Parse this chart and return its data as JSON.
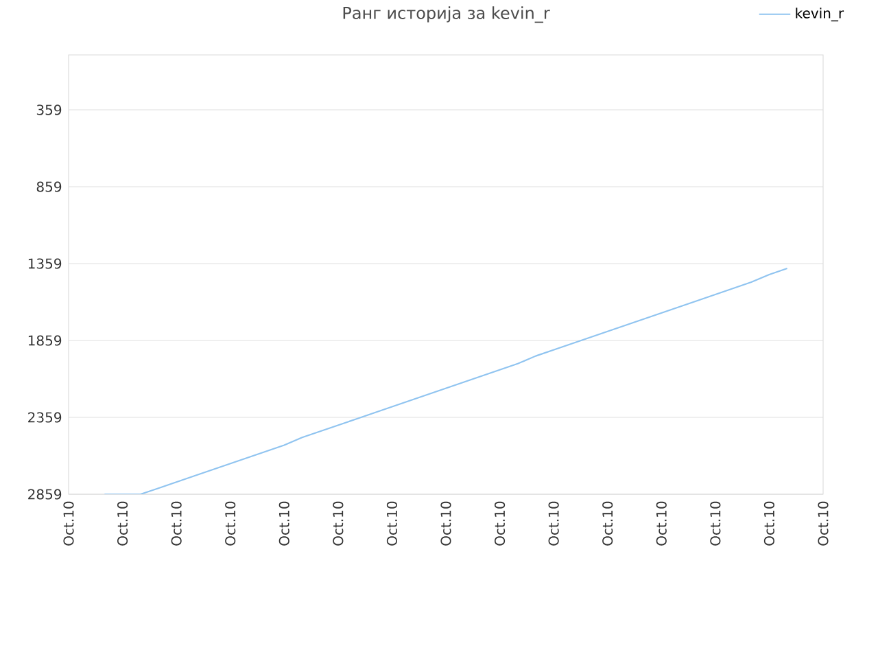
{
  "chart_data": {
    "type": "line",
    "title": "Ранг историја за kevin_r",
    "categories": [
      "Oct.10",
      null,
      null,
      "Oct.10",
      null,
      null,
      "Oct.10",
      null,
      null,
      "Oct.10",
      null,
      null,
      "Oct.10",
      null,
      null,
      "Oct.10",
      null,
      null,
      "Oct.10",
      null,
      null,
      "Oct.10",
      null,
      null,
      "Oct.10",
      null,
      null,
      "Oct.10",
      null,
      null,
      "Oct.10",
      null,
      null,
      "Oct.10",
      null,
      null,
      "Oct.10",
      null,
      null,
      "Oct.10",
      null,
      null,
      "Oct.10"
    ],
    "series": [
      {
        "name": "kevin_r",
        "color": "#90c4f0",
        "values": [
          null,
          null,
          2859,
          2859,
          2859,
          2820,
          2780,
          2740,
          2700,
          2660,
          2620,
          2580,
          2540,
          2490,
          2450,
          2410,
          2370,
          2330,
          2290,
          2250,
          2210,
          2170,
          2130,
          2090,
          2050,
          2010,
          1960,
          1920,
          1880,
          1840,
          1800,
          1760,
          1720,
          1680,
          1640,
          1600,
          1560,
          1520,
          1480,
          1430,
          1390,
          null,
          null
        ]
      }
    ],
    "ylim": [
      2859,
      2
    ],
    "yticks": [
      359,
      859,
      1359,
      1859,
      2359,
      2859
    ],
    "grid": "y",
    "legend": "top right"
  }
}
